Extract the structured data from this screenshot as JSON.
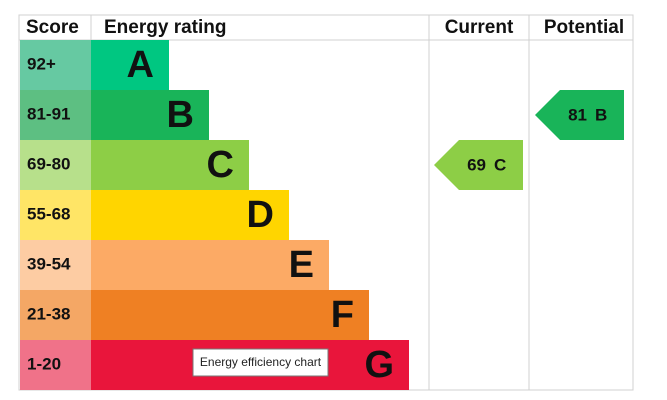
{
  "header": {
    "score": "Score",
    "rating": "Energy rating",
    "current": "Current",
    "potential": "Potential"
  },
  "bands": [
    {
      "score": "92+",
      "letter": "A",
      "color": "#00c781",
      "score_color": "#66c9a2"
    },
    {
      "score": "81-91",
      "letter": "B",
      "color": "#19b459",
      "score_color": "#5dbf82"
    },
    {
      "score": "69-80",
      "letter": "C",
      "color": "#8dce46",
      "score_color": "#b7e08b"
    },
    {
      "score": "55-68",
      "letter": "D",
      "color": "#ffd500",
      "score_color": "#ffe566"
    },
    {
      "score": "39-54",
      "letter": "E",
      "color": "#fcaa65",
      "score_color": "#fdcca3"
    },
    {
      "score": "21-38",
      "letter": "F",
      "color": "#ef8023",
      "score_color": "#f4a765"
    },
    {
      "score": "1-20",
      "letter": "G",
      "color": "#e9153b",
      "score_color": "#f07289"
    }
  ],
  "current": {
    "value": 69,
    "letter": "C"
  },
  "potential": {
    "value": 81,
    "letter": "B"
  },
  "tooltip": "Energy efficiency chart"
}
